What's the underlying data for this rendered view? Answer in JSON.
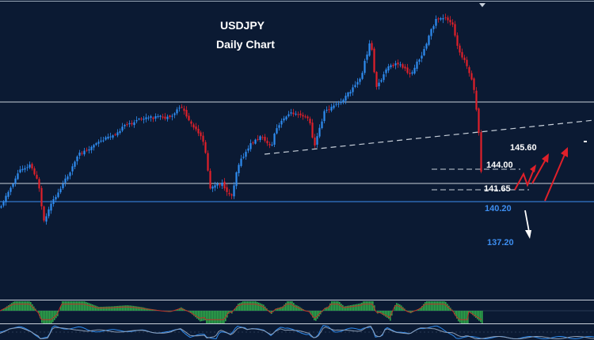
{
  "chart_data": {
    "type": "candlestick",
    "title": "USDJPY",
    "subtitle": "Daily Chart",
    "levels": [
      {
        "label": "145.60",
        "value": 145.6,
        "style": "text-only",
        "color": "#ffffff"
      },
      {
        "label": "144.00",
        "value": 144.0,
        "style": "dashed-short",
        "color": "#ffffff"
      },
      {
        "label": "141.65",
        "value": 141.65,
        "style": "dashed-short",
        "color": "#ffffff"
      },
      {
        "label": "140.20",
        "value": 140.2,
        "style": "solid-horizontal",
        "color": "#3d8ef0"
      },
      {
        "label": "137.20",
        "value": 137.2,
        "style": "text-only",
        "color": "#3d8ef0"
      }
    ],
    "colors": {
      "background": "#0b1a33",
      "bull": "#2f8cf0",
      "bear": "#e0202a",
      "indicator_up": "#2ea84a",
      "indicator_down": "#c0302a",
      "arrow_up": "#e0202a",
      "arrow_down": "#ffffff"
    },
    "legend": "none",
    "grid": false
  }
}
